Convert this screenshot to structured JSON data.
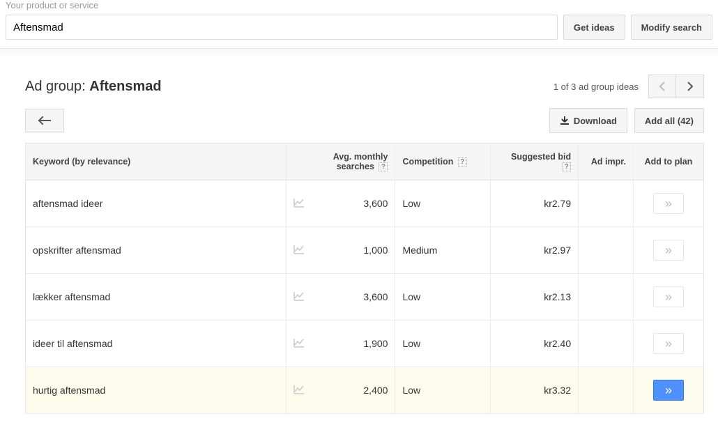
{
  "search": {
    "label": "Your product or service",
    "value": "Aftensmad",
    "get_ideas_label": "Get ideas",
    "modify_search_label": "Modify search"
  },
  "panel": {
    "ad_group_prefix": "Ad group: ",
    "ad_group_name": "Aftensmad",
    "pager_text": "1 of 3 ad group ideas",
    "back_label": "Back",
    "download_label": "Download",
    "add_all_label": "Add all (42)"
  },
  "table": {
    "headers": {
      "keyword": "Keyword (by relevance)",
      "searches": "Avg. monthly searches",
      "competition": "Competition",
      "bid": "Suggested bid",
      "impr": "Ad impr.",
      "plan": "Add to plan"
    },
    "rows": [
      {
        "keyword": "aftensmad ideer",
        "searches": "3,600",
        "competition": "Low",
        "bid": "kr2.79",
        "highlight": false
      },
      {
        "keyword": "opskrifter aftensmad",
        "searches": "1,000",
        "competition": "Medium",
        "bid": "kr2.97",
        "highlight": false
      },
      {
        "keyword": "lækker aftensmad",
        "searches": "3,600",
        "competition": "Low",
        "bid": "kr2.13",
        "highlight": false
      },
      {
        "keyword": "ideer til aftensmad",
        "searches": "1,900",
        "competition": "Low",
        "bid": "kr2.40",
        "highlight": false
      },
      {
        "keyword": "hurtig aftensmad",
        "searches": "2,400",
        "competition": "Low",
        "bid": "kr3.32",
        "highlight": true
      }
    ]
  },
  "colors": {
    "primary_button": "#4d90fe",
    "primary_button_border": "#3079ed",
    "border": "#e5e5e5",
    "header_bg": "#f5f5f5",
    "highlight_row": "#fdfcec",
    "muted_icon": "#c9c9c9"
  }
}
